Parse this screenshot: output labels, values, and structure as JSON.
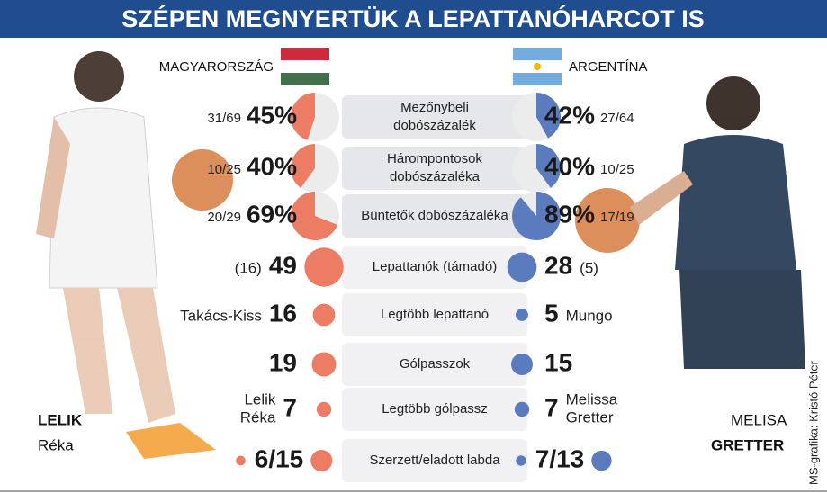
{
  "title": "SZÉPEN MEGNYERTÜK A LEPATTANÓHARCOT IS",
  "teams": [
    {
      "name": "MAGYARORSZÁG",
      "color": "#ec7c63"
    },
    {
      "name": "ARGENTÍNA",
      "color": "#5a7cbf"
    }
  ],
  "stats": [
    {
      "kind": "pie",
      "label": [
        "Mezőnybeli",
        "dobószázalék"
      ],
      "home": {
        "value": 45,
        "value_label": "45%",
        "detail": "31/69"
      },
      "away": {
        "value": 42,
        "value_label": "42%",
        "detail": "27/64"
      }
    },
    {
      "kind": "pie",
      "label": [
        "Hárompontosok",
        "dobószázaléka"
      ],
      "home": {
        "value": 40,
        "value_label": "40%",
        "detail": "10/25"
      },
      "away": {
        "value": 40,
        "value_label": "40%",
        "detail": "10/25"
      }
    },
    {
      "kind": "pie",
      "label": [
        "Büntetők dobószázaléka"
      ],
      "home": {
        "value": 69,
        "value_label": "69%",
        "detail": "20/29"
      },
      "away": {
        "value": 89,
        "value_label": "89%",
        "detail": "17/19"
      }
    },
    {
      "kind": "bubble",
      "label": [
        "Lepattanók (támadó)"
      ],
      "home": {
        "value": 49,
        "detail": "(16)"
      },
      "away": {
        "value": 28,
        "detail": "(5)"
      }
    },
    {
      "kind": "bubble",
      "label": [
        "Legtöbb lepattanó"
      ],
      "home": {
        "value": 16,
        "detail": "Takács-Kiss"
      },
      "away": {
        "value": 5,
        "detail": "Mungo"
      }
    },
    {
      "kind": "bubble",
      "label": [
        "Gólpasszok"
      ],
      "home": {
        "value": 19
      },
      "away": {
        "value": 15
      }
    },
    {
      "kind": "bubble",
      "label": [
        "Legtöbb gólpassz"
      ],
      "home": {
        "value": 7,
        "detail_lines": [
          "Lelik",
          "Réka"
        ]
      },
      "away": {
        "value": 7,
        "detail_lines": [
          "Melissa",
          "Gretter"
        ]
      }
    },
    {
      "kind": "pair",
      "label": [
        "Szerzett/eladott labda"
      ],
      "home": {
        "values": [
          6,
          15
        ],
        "value_label": "6/15"
      },
      "away": {
        "values": [
          7,
          13
        ],
        "value_label": "7/13"
      }
    }
  ],
  "players": [
    {
      "first": "LELIK",
      "last": "Réka"
    },
    {
      "first": "MELISA",
      "last": "GRETTER"
    }
  ],
  "credit": "MS-grafika: Kristó Péter"
}
